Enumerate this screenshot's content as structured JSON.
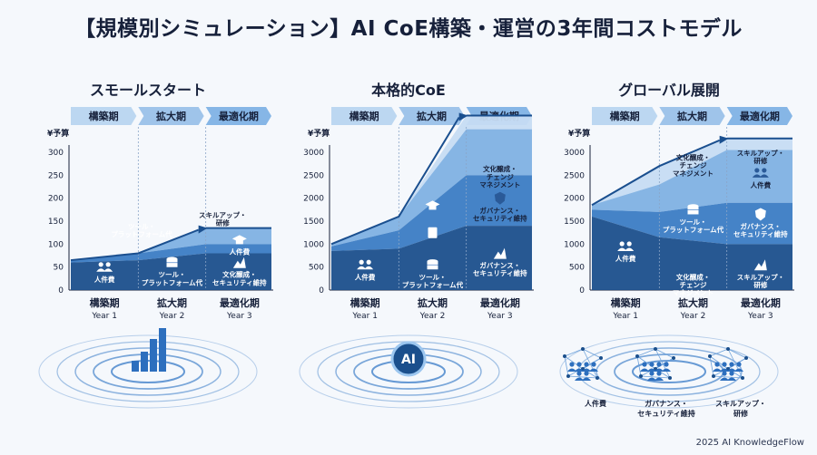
{
  "title": "【規模別シミュレーション】AI CoE構築・運営の3年間コストモデル",
  "footer": "2025 AI KnowledgeFlow",
  "phases": [
    "構築期",
    "拡大期",
    "最適化期"
  ],
  "colors": {
    "dark": "#1b4f8c",
    "mid": "#3b7cc4",
    "light": "#7fb1e3",
    "pale": "#c6dcf3",
    "arrow": "#1a4f8f"
  },
  "chart_data": [
    {
      "type": "area",
      "title": "スモールスタート",
      "ylabel": "¥予算",
      "ylim": [
        0,
        300
      ],
      "yticks": [
        0,
        50,
        100,
        150,
        200,
        250,
        300
      ],
      "categories": [
        {
          "label": "構築期",
          "sub": "Year 1"
        },
        {
          "label": "拡大期",
          "sub": "Year 2"
        },
        {
          "label": "最適化期",
          "sub": "Year 3"
        }
      ],
      "series": [
        {
          "name": "人件費",
          "values": [
            60,
            65,
            80
          ]
        },
        {
          "name": "ツール・プラットフォーム代",
          "values": [
            5,
            15,
            20
          ]
        },
        {
          "name": "スキルアップ・研修",
          "values": [
            0,
            0,
            35
          ]
        }
      ],
      "labels": [
        {
          "text": "人件費",
          "x": 0.5,
          "y": 30,
          "icon": "people"
        },
        {
          "text": "ツール・\nプラットフォーム代",
          "x": 1.5,
          "y": 40,
          "icon": "db"
        },
        {
          "text": "ツール・\nプラットフォーム代",
          "x": 1.05,
          "y": 145,
          "icon": ""
        },
        {
          "text": "文化醸成・\nセキュリティ維持",
          "x": 2.5,
          "y": 40,
          "icon": "mountain"
        },
        {
          "text": "人件費",
          "x": 2.5,
          "y": 90,
          "icon": "cap"
        },
        {
          "text": "スキルアップ・\n研修",
          "x": 2.25,
          "y": 170,
          "icon": ""
        }
      ]
    },
    {
      "type": "area",
      "title": "本格的CoE",
      "ylabel": "¥予算",
      "ylim": [
        0,
        3000
      ],
      "yticks": [
        0,
        500,
        1000,
        1500,
        2000,
        2500,
        3000
      ],
      "categories": [
        {
          "label": "構築期",
          "sub": "Year 1"
        },
        {
          "label": "拡大期",
          "sub": "Year 2"
        },
        {
          "label": "最適化期",
          "sub": "Year 3"
        }
      ],
      "series": [
        {
          "name": "人件費",
          "values": [
            850,
            900,
            1400
          ]
        },
        {
          "name": "ツール・プラットフォーム代",
          "values": [
            100,
            400,
            1100
          ]
        },
        {
          "name": "ガバナンス・セキュリティ維持",
          "values": [
            50,
            300,
            1000
          ]
        },
        {
          "name": "文化醸成・チェンジマネジメント",
          "values": [
            0,
            0,
            300
          ]
        }
      ],
      "labels": [
        {
          "text": "人件費",
          "x": 0.5,
          "y": 350,
          "icon": "people"
        },
        {
          "text": "ツール・\nプラットフォーム代",
          "x": 1.5,
          "y": 350,
          "icon": "db"
        },
        {
          "text": "",
          "x": 1.5,
          "y": 1050,
          "icon": "doc"
        },
        {
          "text": "",
          "x": 1.5,
          "y": 1650,
          "icon": "cap"
        },
        {
          "text": "ガバナンス・\nセキュリティ維持",
          "x": 2.5,
          "y": 600,
          "icon": "mountain"
        },
        {
          "text": "ガバナンス・\nセキュリティ維持",
          "x": 2.5,
          "y": 1800,
          "icon": "shield"
        },
        {
          "text": "文化醸成・\nチェンジ\nマネジメント",
          "x": 2.5,
          "y": 2700,
          "icon": ""
        }
      ]
    },
    {
      "type": "area",
      "title": "グローバル展開",
      "ylabel": "¥予算",
      "ylim": [
        0,
        3000
      ],
      "yticks": [
        0,
        500,
        1000,
        1500,
        2000,
        2500,
        3000
      ],
      "categories": [
        {
          "label": "構築期",
          "sub": "Year 1"
        },
        {
          "label": "拡大期",
          "sub": "Year 2"
        },
        {
          "label": "最適化期",
          "sub": "Year 3"
        }
      ],
      "series": [
        {
          "name": "人件費",
          "values": [
            1600,
            1150,
            1000
          ]
        },
        {
          "name": "ツール・プラットフォーム代",
          "values": [
            150,
            550,
            900
          ]
        },
        {
          "name": "ガバナンス・セキュリティ維持",
          "values": [
            100,
            600,
            1150
          ]
        },
        {
          "name": "スキルアップ・研修",
          "values": [
            0,
            400,
            250
          ]
        }
      ],
      "labels": [
        {
          "text": "人件費",
          "x": 0.5,
          "y": 750,
          "icon": "people"
        },
        {
          "text": "文化醸成・\nチェンジ\nマネジメント",
          "x": 1.5,
          "y": 350,
          "icon": ""
        },
        {
          "text": "ツール・\nプラットフォーム代",
          "x": 1.5,
          "y": 1550,
          "icon": "db"
        },
        {
          "text": "スキルアップ・\n研修",
          "x": 2.5,
          "y": 350,
          "icon": "mountain"
        },
        {
          "text": "ガバナンス・\nセキュリティ維持",
          "x": 2.5,
          "y": 1450,
          "icon": "shield"
        },
        {
          "text": "人件費",
          "x": 2.5,
          "y": 2350,
          "icon": "people"
        },
        {
          "text": "スキルアップ・\n研修",
          "x": 2.5,
          "y": 3050,
          "icon": ""
        },
        {
          "text": "文化醸成・\nチェンジ\nマネジメント",
          "x": 1.5,
          "y": 2950,
          "icon": ""
        }
      ]
    }
  ],
  "bottom_legend": [
    {
      "text": "人件費",
      "icon": "people-network"
    },
    {
      "text": "ガバナンス・\nセキュリティ維持",
      "icon": "people-network"
    },
    {
      "text": "スキルアップ・\n研修",
      "icon": "people-network"
    }
  ],
  "ai_badge": "AI"
}
